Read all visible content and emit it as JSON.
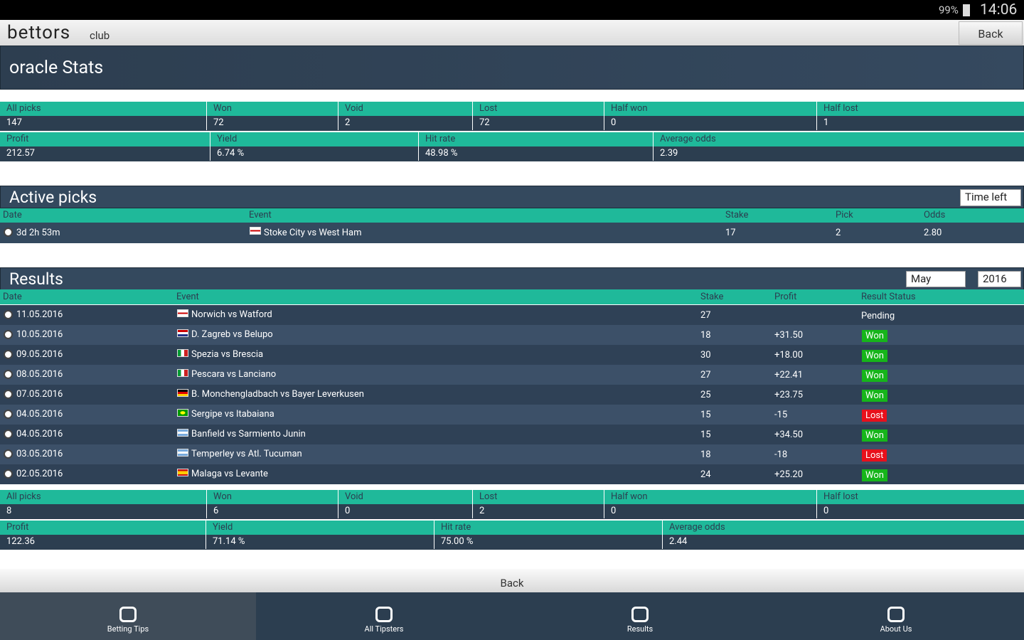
{
  "status_bar": {
    "battery": "99%",
    "time": "14:06"
  },
  "header": {
    "logo": "bettors",
    "logo_sub": "club",
    "back": "Back"
  },
  "title": "oracle Stats",
  "stats": {
    "row1": {
      "labels": [
        "All picks",
        "Won",
        "Void",
        "Lost",
        "Half won",
        "Half lost"
      ],
      "values": [
        "147",
        "72",
        "2",
        "72",
        "0",
        "1"
      ]
    },
    "row2": {
      "labels": [
        "Profit",
        "Yield",
        "Hit rate",
        "Average odds"
      ],
      "values": [
        "212.57",
        "6.74 %",
        "48.98 %",
        "2.39"
      ]
    }
  },
  "active_picks": {
    "title": "Active picks",
    "sort": "Time left",
    "columns": [
      "Date",
      "Event",
      "Stake",
      "Pick",
      "Odds"
    ],
    "rows": [
      [
        "3d 2h 53m",
        "Stoke City vs West Ham",
        "17",
        "2",
        "2.80"
      ]
    ]
  },
  "results": {
    "title": "Results",
    "month": "May",
    "year": "2016",
    "columns": [
      "Date",
      "Event",
      "Stake",
      "Profit",
      "Result Status"
    ],
    "rows": [
      {
        "date": "11.05.2016",
        "event": "Norwich vs Watford",
        "stake": "27",
        "status": "Pending"
      },
      {
        "date": "10.05.2016",
        "event": "D. Zagreb vs Belupo",
        "stake": "18",
        "profit": "+31.50",
        "status": "Won"
      },
      {
        "date": "09.05.2016",
        "event": "Spezia vs Brescia",
        "stake": "30",
        "profit": "+18.00",
        "status": "Won"
      },
      {
        "date": "08.05.2016",
        "event": "Pescara vs Lanciano",
        "stake": "27",
        "profit": "+22.41",
        "status": "Won"
      },
      {
        "date": "07.05.2016",
        "event": "B. Monchengladbach vs Bayer Leverkusen",
        "stake": "25",
        "profit": "+23.75",
        "status": "Won"
      },
      {
        "date": "04.05.2016",
        "event": "Sergipe vs Itabaiana",
        "stake": "15",
        "profit": "-15",
        "status": "Lost"
      },
      {
        "date": "04.05.2016",
        "event": "Banfield vs Sarmiento Junin",
        "stake": "15",
        "profit": "+34.50",
        "status": "Won"
      },
      {
        "date": "03.05.2016",
        "event": "Temperley vs Atl. Tucuman",
        "stake": "18",
        "profit": "-18",
        "status": "Lost"
      },
      {
        "date": "02.05.2016",
        "event": "Malaga vs Levante",
        "stake": "24",
        "profit": "+25.20",
        "status": "Won"
      }
    ]
  },
  "results_stats": {
    "row1": {
      "labels": [
        "All picks",
        "Won",
        "Void",
        "Lost",
        "Half won",
        "Half lost"
      ],
      "values": [
        "8",
        "6",
        "0",
        "2",
        "0",
        "0"
      ]
    },
    "row2": {
      "labels": [
        "Profit",
        "Yield",
        "Hit rate",
        "Average odds"
      ],
      "values": [
        "122.36",
        "71.14 %",
        "75.00 %",
        "2.44"
      ]
    }
  },
  "footer_back": "Back",
  "nav": [
    "Betting Tips",
    "All Tipsters",
    "Results",
    "About Us"
  ]
}
